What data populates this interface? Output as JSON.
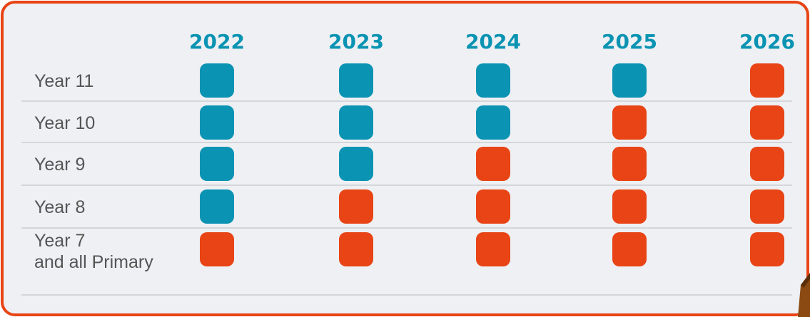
{
  "table": {
    "columns": [
      "2022",
      "2023",
      "2024",
      "2025",
      "2026"
    ],
    "rows": [
      {
        "label": [
          "Year 11"
        ],
        "cells": [
          "#0a93b3",
          "#0a93b3",
          "#0a93b3",
          "#0a93b3",
          "#e84415"
        ]
      },
      {
        "label": [
          "Year 10"
        ],
        "cells": [
          "#0a93b3",
          "#0a93b3",
          "#0a93b3",
          "#e84415",
          "#e84415"
        ]
      },
      {
        "label": [
          "Year 9"
        ],
        "cells": [
          "#0a93b3",
          "#0a93b3",
          "#e84415",
          "#e84415",
          "#e84415"
        ]
      },
      {
        "label": [
          "Year 8"
        ],
        "cells": [
          "#0a93b3",
          "#e84415",
          "#e84415",
          "#e84415",
          "#e84415"
        ]
      },
      {
        "label": [
          "Year 7",
          "and all Primary"
        ],
        "cells": [
          "#e84415",
          "#e84415",
          "#e84415",
          "#e84415",
          "#e84415"
        ]
      }
    ]
  }
}
